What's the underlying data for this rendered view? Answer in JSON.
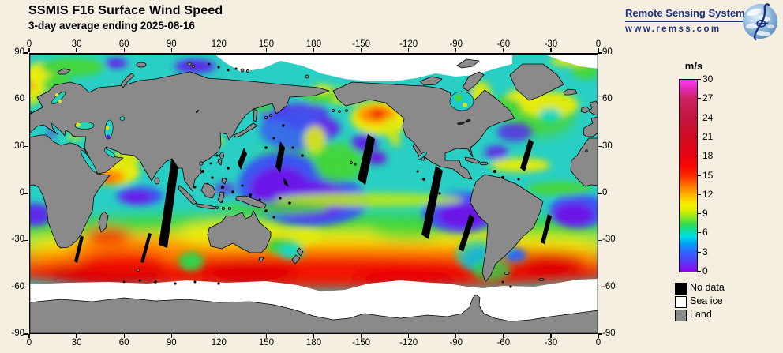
{
  "header": {
    "title": "SSMIS F16 Surface Wind Speed",
    "subtitle": "3-day average ending 2025-08-16"
  },
  "logo": {
    "name": "Remote Sensing Systems",
    "url": "www.remss.com",
    "color": "#223082"
  },
  "map": {
    "projection": "equirectangular world map, longitude 0 to 360 left-to-right, latitude 90 to -90 top-to-bottom",
    "lon_ticks": [
      "0",
      "30",
      "60",
      "90",
      "120",
      "150",
      "180",
      "-150",
      "-120",
      "-90",
      "-60",
      "-30",
      "0"
    ],
    "lat_ticks": [
      "90",
      "60",
      "30",
      "0",
      "-30",
      "-60",
      "-90"
    ],
    "land_color": "#8a8a8a",
    "sea_ice_color": "#ffffff",
    "no_data_color": "#000000",
    "background_color": "#f5efe2"
  },
  "colorbar": {
    "unit": "m/s",
    "min": 0,
    "max": 30,
    "tick_labels": [
      "30",
      "27",
      "24",
      "21",
      "18",
      "15",
      "12",
      "9",
      "6",
      "3",
      "0"
    ],
    "stops": [
      {
        "value": 0,
        "color": "#9000ee"
      },
      {
        "value": 1.5,
        "color": "#5a38f8"
      },
      {
        "value": 3,
        "color": "#2e62ff"
      },
      {
        "value": 4.5,
        "color": "#00a6f8"
      },
      {
        "value": 5.5,
        "color": "#00e0e8"
      },
      {
        "value": 6.5,
        "color": "#10dc9a"
      },
      {
        "value": 7.5,
        "color": "#38dc48"
      },
      {
        "value": 8.5,
        "color": "#8ce81c"
      },
      {
        "value": 9.5,
        "color": "#d8ec00"
      },
      {
        "value": 10.5,
        "color": "#f8f000"
      },
      {
        "value": 12,
        "color": "#ffb400"
      },
      {
        "value": 13.5,
        "color": "#ff7000"
      },
      {
        "value": 15,
        "color": "#fc2c00"
      },
      {
        "value": 16.5,
        "color": "#f70800"
      },
      {
        "value": 18,
        "color": "#ea0210"
      },
      {
        "value": 21,
        "color": "#d00a22"
      },
      {
        "value": 24,
        "color": "#c41640"
      },
      {
        "value": 27,
        "color": "#cc2060"
      },
      {
        "value": 28.5,
        "color": "#e228b0"
      },
      {
        "value": 30,
        "color": "#ff3cfc"
      }
    ]
  },
  "legend": {
    "items": [
      {
        "label": "No data",
        "color": "#000000"
      },
      {
        "label": "Sea ice",
        "color": "#ffffff"
      },
      {
        "label": "Land",
        "color": "#8a8a8a"
      }
    ]
  }
}
